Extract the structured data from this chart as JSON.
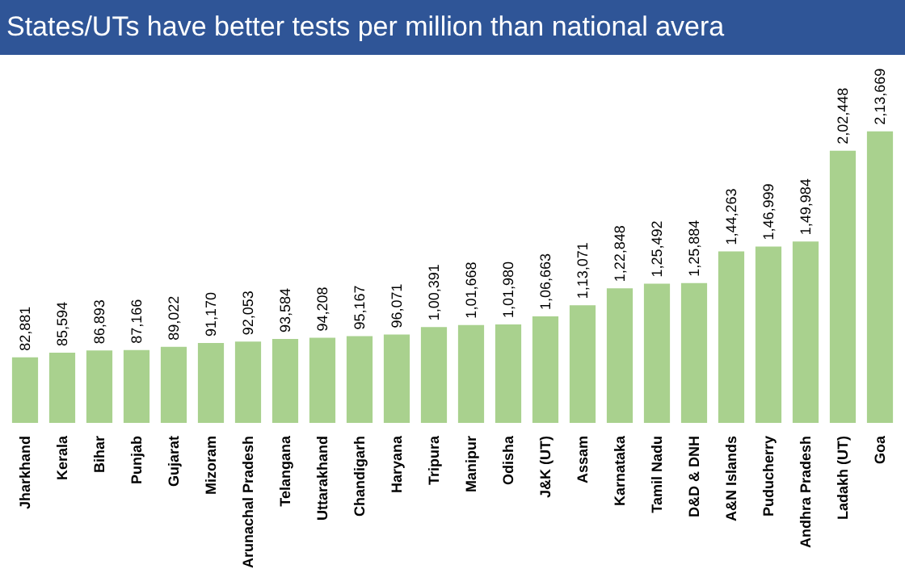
{
  "chart_data": {
    "type": "bar",
    "title": "States/UTs have better tests per million than national avera",
    "categories": [
      "Jharkhand",
      "Kerala",
      "Bihar",
      "Punjab",
      "Gujarat",
      "Mizoram",
      "Arunachal Pradesh",
      "Telangana",
      "Uttarakhand",
      "Chandigarh",
      "Haryana",
      "Tripura",
      "Manipur",
      "Odisha",
      "J&K (UT)",
      "Assam",
      "Karnataka",
      "Tamil Nadu",
      "D&D & DNH",
      "A&N Islands",
      "Puducherry",
      "Andhra Pradesh",
      "Ladakh (UT)",
      "Goa"
    ],
    "values": [
      82881,
      85594,
      86893,
      87166,
      89022,
      91170,
      92053,
      93584,
      94208,
      95167,
      96071,
      100391,
      101668,
      101980,
      106663,
      113071,
      122848,
      125492,
      125884,
      144263,
      146999,
      149984,
      202448,
      213669
    ],
    "value_labels": [
      "82,881",
      "85,594",
      "86,893",
      "87,166",
      "89,022",
      "91,170",
      "92,053",
      "93,584",
      "94,208",
      "95,167",
      "96,071",
      "1,00,391",
      "1,01,668",
      "1,01,980",
      "1,06,663",
      "1,13,071",
      "1,22,848",
      "1,25,492",
      "1,25,884",
      "1,44,263",
      "1,46,999",
      "1,49,984",
      "2,02,448",
      "2,13,669"
    ],
    "color": "#a9d18e",
    "ylim": [
      45000,
      215000
    ],
    "tick_labels": "x"
  }
}
